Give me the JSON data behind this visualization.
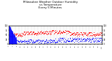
{
  "title": "Milwaukee Weather Outdoor Humidity\nvs Temperature\nEvery 5 Minutes",
  "title_fontsize": 3.0,
  "background_color": "#ffffff",
  "blue_color": "#0000ff",
  "red_color": "#ff0000",
  "ylim": [
    0,
    100
  ],
  "xlim": [
    0,
    100
  ],
  "grid_color": "#aaaaaa",
  "n_points": 288,
  "blue_early_spike_height_max": 100,
  "blue_early_spike_height_min": 30,
  "red_mid_y_mean": 55,
  "blue_late_y_mean": 20
}
